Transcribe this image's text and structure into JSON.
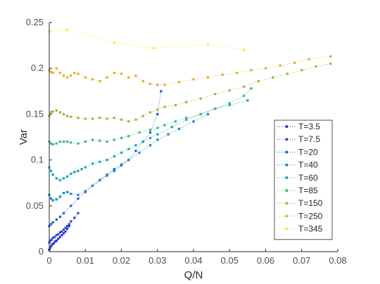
{
  "chart_data": {
    "type": "scatter",
    "title": "",
    "xlabel": "Q/N",
    "ylabel": "Var",
    "xlim": [
      0,
      0.08
    ],
    "ylim": [
      0,
      0.25
    ],
    "x_ticks": [
      0,
      0.01,
      0.02,
      0.03,
      0.04,
      0.05,
      0.06,
      0.07,
      0.08
    ],
    "y_ticks": [
      0,
      0.05,
      0.1,
      0.15,
      0.2,
      0.25
    ],
    "x_tick_labels": [
      "0",
      "0.01",
      "0.02",
      "0.03",
      "0.04",
      "0.05",
      "0.06",
      "0.07",
      "0.08"
    ],
    "y_tick_labels": [
      "0",
      "0.05",
      "0.1",
      "0.15",
      "0.2",
      "0.25"
    ],
    "grid": false,
    "legend_position": "bottom-right",
    "series": [
      {
        "name": "T=3.5",
        "color": "#2e2ec8",
        "x": [
          0.0,
          0.0002,
          0.0005,
          0.0008,
          0.0012,
          0.0016,
          0.002,
          0.0025,
          0.003,
          0.0035,
          0.004,
          0.0045,
          0.005,
          0.0055
        ],
        "y": [
          0.002,
          0.004,
          0.006,
          0.008,
          0.009,
          0.011,
          0.012,
          0.014,
          0.016,
          0.018,
          0.02,
          0.022,
          0.025,
          0.028
        ]
      },
      {
        "name": "T=7.5",
        "color": "#2e44d8",
        "x": [
          0.0,
          0.0003,
          0.0006,
          0.001,
          0.0015,
          0.002,
          0.0025,
          0.003,
          0.0035,
          0.004,
          0.0045,
          0.005,
          0.0055,
          0.006,
          0.007,
          0.008
        ],
        "y": [
          0.01,
          0.012,
          0.013,
          0.015,
          0.016,
          0.018,
          0.019,
          0.021,
          0.022,
          0.024,
          0.026,
          0.028,
          0.03,
          0.033,
          0.037,
          0.042
        ]
      },
      {
        "name": "T=20",
        "color": "#1f5fd8",
        "x": [
          0.0,
          0.0005,
          0.001,
          0.002,
          0.003,
          0.004,
          0.006,
          0.008,
          0.01,
          0.012,
          0.014,
          0.016,
          0.018,
          0.02,
          0.022,
          0.024,
          0.026,
          0.028,
          0.03,
          0.031
        ],
        "y": [
          0.028,
          0.03,
          0.032,
          0.035,
          0.038,
          0.042,
          0.05,
          0.058,
          0.065,
          0.072,
          0.078,
          0.084,
          0.09,
          0.095,
          0.1,
          0.11,
          0.12,
          0.13,
          0.15,
          0.175
        ]
      },
      {
        "name": "T=40",
        "color": "#1486c8",
        "x": [
          0.0,
          0.0005,
          0.001,
          0.002,
          0.003,
          0.004,
          0.005,
          0.006,
          0.008,
          0.01,
          0.012,
          0.014,
          0.016,
          0.018,
          0.02,
          0.022,
          0.025,
          0.028,
          0.03,
          0.033,
          0.036,
          0.04,
          0.044
        ],
        "y": [
          0.062,
          0.058,
          0.056,
          0.057,
          0.06,
          0.064,
          0.065,
          0.063,
          0.062,
          0.066,
          0.072,
          0.078,
          0.083,
          0.088,
          0.094,
          0.1,
          0.108,
          0.116,
          0.122,
          0.128,
          0.134,
          0.142,
          0.15
        ]
      },
      {
        "name": "T=60",
        "color": "#12a6b4",
        "x": [
          0.0,
          0.0005,
          0.001,
          0.002,
          0.003,
          0.004,
          0.005,
          0.006,
          0.007,
          0.008,
          0.009,
          0.01,
          0.012,
          0.014,
          0.016,
          0.018,
          0.02,
          0.022,
          0.024,
          0.026,
          0.028,
          0.03,
          0.034,
          0.038,
          0.042,
          0.046,
          0.05,
          0.055
        ],
        "y": [
          0.092,
          0.088,
          0.084,
          0.08,
          0.078,
          0.08,
          0.082,
          0.085,
          0.087,
          0.088,
          0.09,
          0.092,
          0.096,
          0.098,
          0.1,
          0.104,
          0.108,
          0.112,
          0.116,
          0.12,
          0.124,
          0.128,
          0.136,
          0.144,
          0.15,
          0.156,
          0.16,
          0.165
        ]
      },
      {
        "name": "T=85",
        "color": "#3cb87e",
        "x": [
          0.0,
          0.0005,
          0.001,
          0.002,
          0.003,
          0.004,
          0.005,
          0.006,
          0.008,
          0.01,
          0.012,
          0.014,
          0.016,
          0.018,
          0.02,
          0.022,
          0.025,
          0.028,
          0.03,
          0.032,
          0.035,
          0.038,
          0.042,
          0.046,
          0.05,
          0.054,
          0.056
        ],
        "y": [
          0.12,
          0.118,
          0.117,
          0.118,
          0.12,
          0.12,
          0.12,
          0.119,
          0.118,
          0.12,
          0.122,
          0.121,
          0.12,
          0.122,
          0.124,
          0.126,
          0.13,
          0.133,
          0.135,
          0.138,
          0.142,
          0.146,
          0.15,
          0.156,
          0.162,
          0.17,
          0.178
        ]
      },
      {
        "name": "T=150",
        "color": "#9ab83a",
        "x": [
          0.0,
          0.0005,
          0.001,
          0.002,
          0.003,
          0.004,
          0.005,
          0.006,
          0.008,
          0.01,
          0.012,
          0.014,
          0.016,
          0.018,
          0.02,
          0.022,
          0.024,
          0.026,
          0.028,
          0.03,
          0.032,
          0.035,
          0.038,
          0.042,
          0.046,
          0.05,
          0.054,
          0.058,
          0.062,
          0.066,
          0.07,
          0.074,
          0.078
        ],
        "y": [
          0.148,
          0.152,
          0.153,
          0.154,
          0.152,
          0.15,
          0.148,
          0.147,
          0.146,
          0.145,
          0.145,
          0.146,
          0.145,
          0.146,
          0.144,
          0.142,
          0.144,
          0.148,
          0.152,
          0.155,
          0.158,
          0.16,
          0.163,
          0.167,
          0.172,
          0.176,
          0.18,
          0.186,
          0.19,
          0.194,
          0.198,
          0.202,
          0.205
        ]
      },
      {
        "name": "T=250",
        "color": "#e0b02e",
        "x": [
          0.0,
          0.0005,
          0.001,
          0.002,
          0.003,
          0.004,
          0.005,
          0.006,
          0.007,
          0.008,
          0.01,
          0.012,
          0.014,
          0.016,
          0.018,
          0.02,
          0.022,
          0.024,
          0.026,
          0.028,
          0.03,
          0.032,
          0.036,
          0.04,
          0.044,
          0.048,
          0.052,
          0.056,
          0.06,
          0.064,
          0.068,
          0.072,
          0.078
        ],
        "y": [
          0.198,
          0.196,
          0.195,
          0.2,
          0.195,
          0.192,
          0.19,
          0.192,
          0.195,
          0.194,
          0.19,
          0.188,
          0.186,
          0.19,
          0.195,
          0.194,
          0.19,
          0.192,
          0.186,
          0.183,
          0.182,
          0.182,
          0.185,
          0.188,
          0.19,
          0.193,
          0.195,
          0.198,
          0.2,
          0.203,
          0.206,
          0.21,
          0.213
        ]
      },
      {
        "name": "T=345",
        "color": "#f2ee2a",
        "x": [
          0.0,
          0.005,
          0.018,
          0.029,
          0.044,
          0.054
        ],
        "y": [
          0.24,
          0.242,
          0.228,
          0.222,
          0.226,
          0.22
        ]
      }
    ]
  }
}
